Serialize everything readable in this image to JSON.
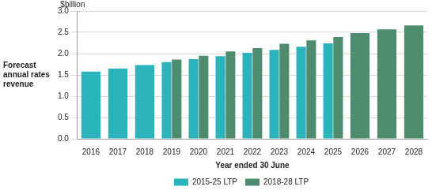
{
  "chart_data": {
    "type": "bar",
    "y_label": "Forecast annual rates revenue",
    "x_label": "Year ended 30 June",
    "annotations": [
      "$billion"
    ],
    "categories": [
      "2016",
      "2017",
      "2018",
      "2019",
      "2020",
      "2021",
      "2022",
      "2023",
      "2024",
      "2025",
      "2026",
      "2027",
      "2028"
    ],
    "series": [
      {
        "name": "2015-25 LTP",
        "color": "#2bb3bc",
        "values": [
          1.58,
          1.65,
          1.73,
          1.8,
          1.87,
          1.94,
          2.02,
          2.09,
          2.16,
          2.24,
          null,
          null,
          null
        ]
      },
      {
        "name": "2018-28 LTP",
        "color": "#4e8c6f",
        "values": [
          null,
          null,
          null,
          1.86,
          1.95,
          2.05,
          2.13,
          2.23,
          2.31,
          2.39,
          2.48,
          2.57,
          2.66
        ]
      }
    ],
    "ylim": [
      0,
      3
    ],
    "yticks": [
      {
        "value": 0,
        "label": "0.0"
      },
      0.5,
      {
        "value": 1,
        "label": "1.0"
      },
      1.5,
      {
        "value": 2,
        "label": "2.0"
      },
      2.5,
      {
        "value": 3,
        "label": "3.0"
      }
    ],
    "grid": true,
    "legend": "bottom"
  }
}
